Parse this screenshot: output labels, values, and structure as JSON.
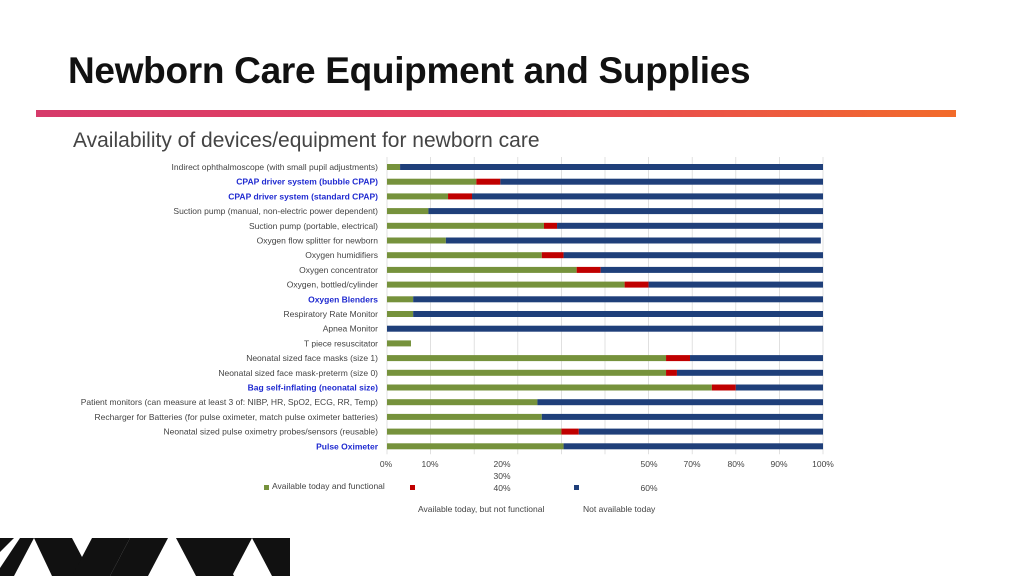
{
  "slide": {
    "title": "Newborn Care Equipment and Supplies",
    "subtitle": "Availability of devices/equipment for newborn care"
  },
  "colors": {
    "accent_start": "#d63a6a",
    "accent_end": "#f26b2a",
    "functional": "#76923c",
    "not_functional": "#c00000",
    "not_available": "#1f3f7a",
    "highlight_label": "#1f2ad0"
  },
  "chart_data": {
    "type": "bar",
    "orientation": "horizontal",
    "stacked": true,
    "categories": [
      "Indirect ophthalmoscope (with small pupil adjustments)",
      "CPAP driver system (bubble CPAP)",
      "CPAP driver system (standard CPAP)",
      "Suction pump (manual, non-electric power dependent)",
      "Suction pump (portable, electrical)",
      "Oxygen flow splitter for newborn",
      "Oxygen humidifiers",
      "Oxygen concentrator",
      "Oxygen, bottled/cylinder",
      "Oxygen Blenders",
      "Respiratory Rate Monitor",
      "Apnea Monitor",
      "T piece resuscitator",
      "Neonatal sized face masks (size 1)",
      "Neonatal sized face mask-preterm (size 0)",
      "Bag self-inflating (neonatal size)",
      "Patient monitors (can measure at least 3 of: NIBP, HR, SpO2, ECG, RR, Temp)",
      "Recharger for Batteries (for pulse oximeter, match pulse oximeter batteries)",
      "Neonatal sized pulse oximetry probes/sensors (reusable)",
      "Pulse Oximeter"
    ],
    "highlighted_categories": [
      "CPAP driver system (bubble CPAP)",
      "CPAP driver system (standard CPAP)",
      "Oxygen Blenders",
      "Bag self-inflating (neonatal size)",
      "Pulse Oximeter"
    ],
    "series": [
      {
        "name": "Available today and functional",
        "values": [
          3,
          20.5,
          14,
          9.5,
          36,
          13.5,
          35.5,
          43.5,
          54.5,
          6,
          6,
          0,
          5.5,
          64,
          64,
          74.5,
          34.5,
          35.5,
          40,
          40.5
        ]
      },
      {
        "name": "Available today, but not functional",
        "values": [
          0,
          5.5,
          5.5,
          0,
          3,
          0,
          5,
          5.5,
          5.5,
          0,
          0,
          0,
          0,
          5.5,
          2.5,
          5.5,
          0,
          0,
          4,
          0
        ]
      },
      {
        "name": "Not available today",
        "values": [
          97,
          74,
          80.5,
          90.5,
          61,
          86,
          59.5,
          51,
          40,
          94,
          94,
          100,
          0,
          30.5,
          33.5,
          20,
          65.5,
          64.5,
          56,
          59.5
        ]
      }
    ],
    "xlim": [
      0,
      100
    ],
    "x_ticks": [
      "0%",
      "10%",
      "20%",
      "30%",
      "40%",
      "50%",
      "60%",
      "70%",
      "80%",
      "90%",
      "100%"
    ],
    "grid": true,
    "legend_position": "bottom"
  }
}
